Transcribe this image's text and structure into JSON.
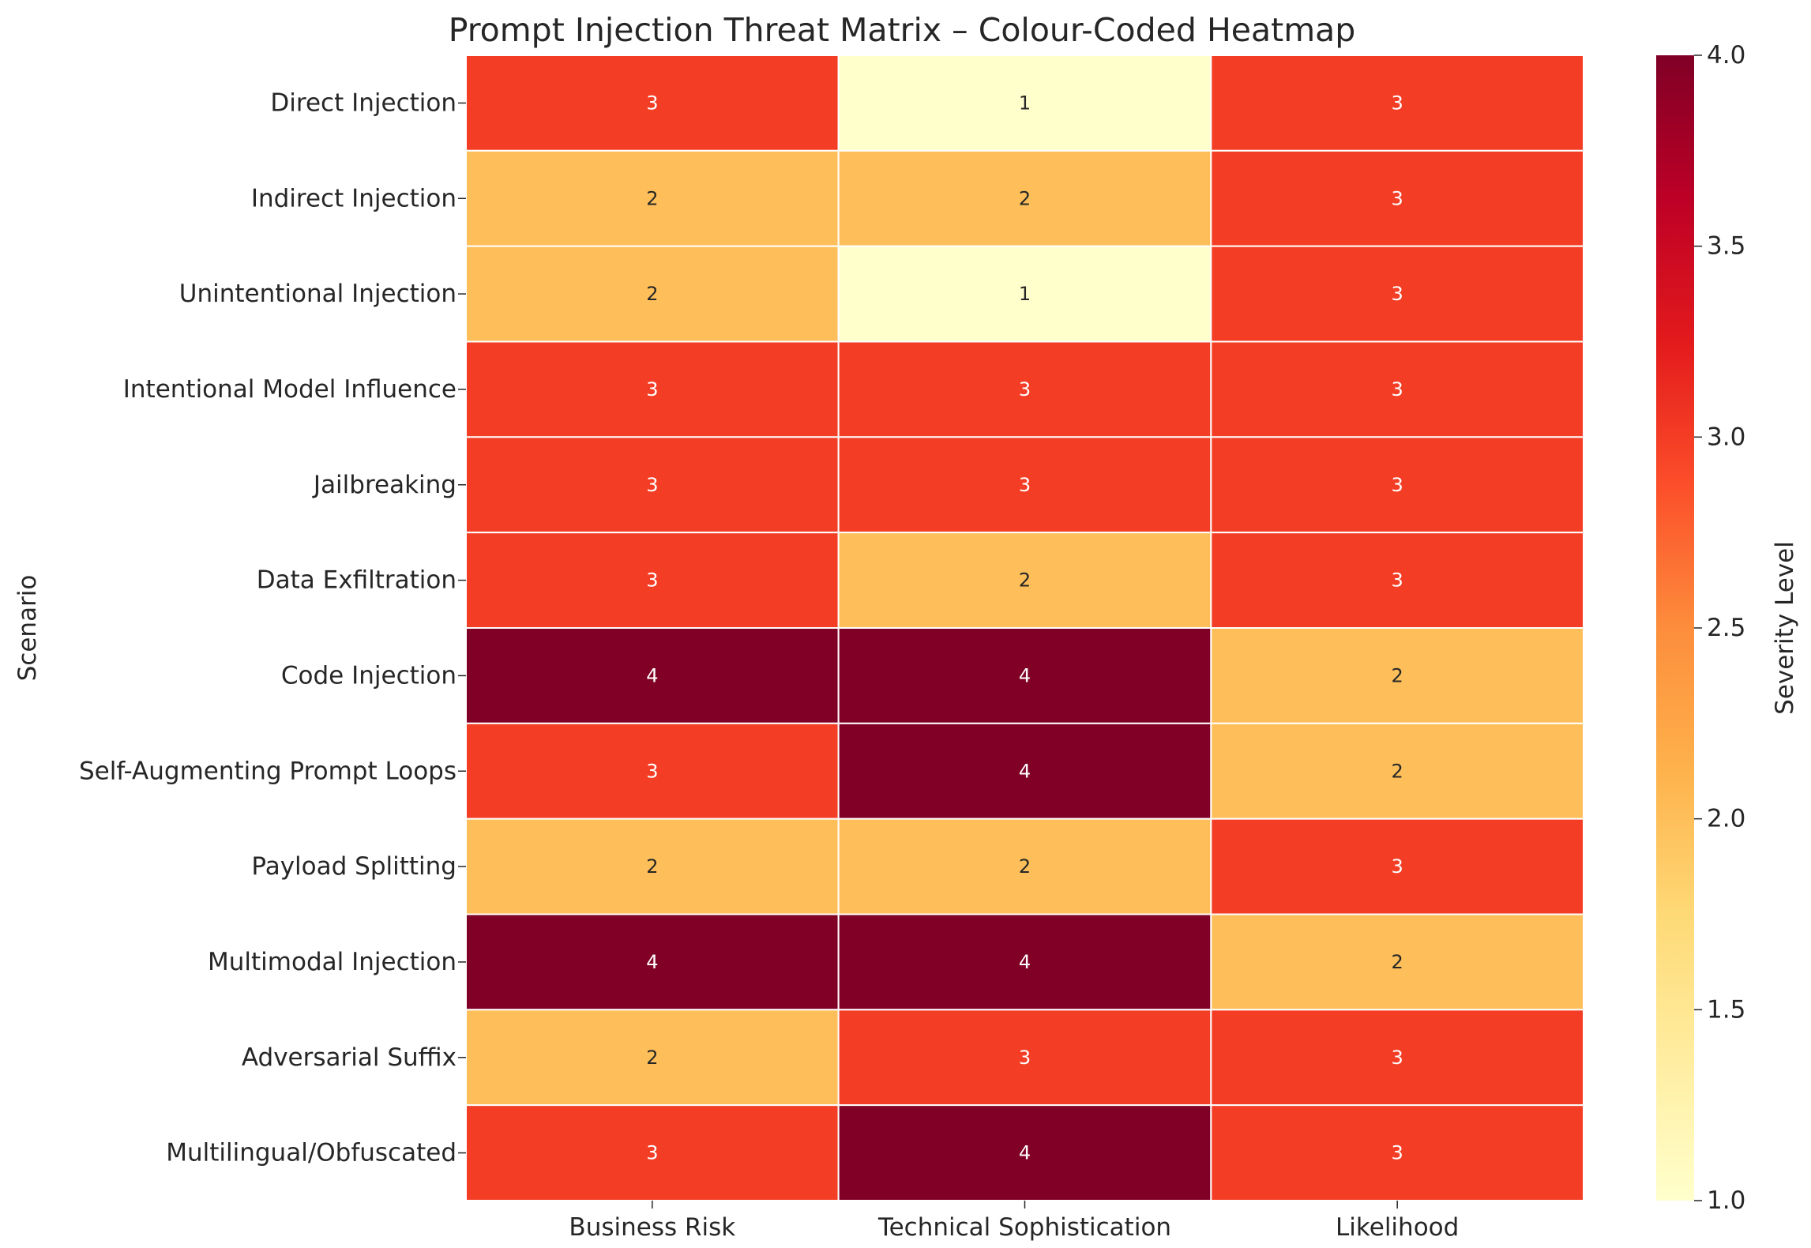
{
  "chart_data": {
    "type": "heatmap",
    "title": "Prompt Injection Threat Matrix – Colour-Coded Heatmap",
    "xlabel": "",
    "ylabel": "Scenario",
    "columns": [
      "Business Risk",
      "Technical Sophistication",
      "Likelihood"
    ],
    "rows": [
      "Direct Injection",
      "Indirect Injection",
      "Unintentional Injection",
      "Intentional Model Influence",
      "Jailbreaking",
      "Data Exfiltration",
      "Code Injection",
      "Self-Augmenting Prompt Loops",
      "Payload Splitting",
      "Multimodal Injection",
      "Adversarial Suffix",
      "Multilingual/Obfuscated"
    ],
    "values": [
      [
        3,
        1,
        3
      ],
      [
        2,
        2,
        3
      ],
      [
        2,
        1,
        3
      ],
      [
        3,
        3,
        3
      ],
      [
        3,
        3,
        3
      ],
      [
        3,
        2,
        3
      ],
      [
        4,
        4,
        2
      ],
      [
        3,
        4,
        2
      ],
      [
        2,
        2,
        3
      ],
      [
        4,
        4,
        2
      ],
      [
        2,
        3,
        3
      ],
      [
        3,
        4,
        3
      ]
    ],
    "colorbar": {
      "label": "Severity Level",
      "range": [
        1.0,
        4.0
      ],
      "ticks": [
        "1.0",
        "1.5",
        "2.0",
        "2.5",
        "3.0",
        "3.5",
        "4.0"
      ],
      "colormap": "YlOrRd"
    },
    "annotations": true,
    "grid": false
  }
}
